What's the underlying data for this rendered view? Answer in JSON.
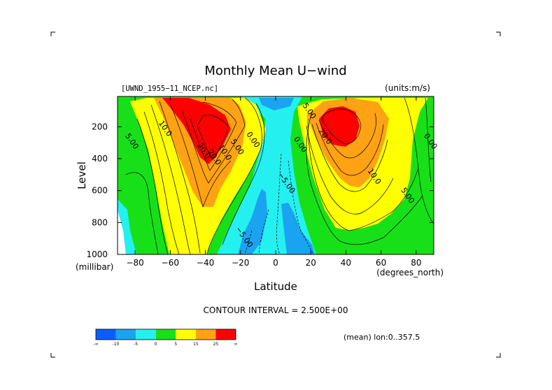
{
  "chart_data": {
    "type": "heatmap",
    "title": "Monthly Mean U−wind",
    "dataset_label": "[UWND_1955−11_NCEP.nc]",
    "units_label": "(units:m/s)",
    "xlabel": "Latitude",
    "ylabel": "Level",
    "x_units_label": "(degrees_north)",
    "y_units_label": "(millibar)",
    "xlim": [
      -90,
      90
    ],
    "ylim": [
      1000,
      10
    ],
    "x_ticks": [
      -80,
      -60,
      -40,
      -20,
      0,
      20,
      40,
      60,
      80
    ],
    "x_tick_labels": [
      "−80",
      "−60",
      "−40",
      "−20",
      "0",
      "20",
      "40",
      "60",
      "80"
    ],
    "y_ticks": [
      200,
      400,
      600,
      800,
      1000
    ],
    "y_tick_labels": [
      "200",
      "400",
      "600",
      "800",
      "1000"
    ],
    "contour_interval_label": "CONTOUR INTERVAL = 2.500E+00",
    "mean_label": "(mean) lon:0..357.5",
    "contour_labels": [
      {
        "text": "5.00",
        "lat": -83,
        "level": 300
      },
      {
        "text": "10.0",
        "lat": -64,
        "level": 220
      },
      {
        "text": "20.0",
        "lat": -42,
        "level": 360
      },
      {
        "text": "20.0",
        "lat": -36,
        "level": 400
      },
      {
        "text": "10.0",
        "lat": -30,
        "level": 370
      },
      {
        "text": "5.00",
        "lat": -23,
        "level": 335
      },
      {
        "text": "0.00",
        "lat": -14,
        "level": 290
      },
      {
        "text": "0.00",
        "lat": 13,
        "level": 320
      },
      {
        "text": "−5.00",
        "lat": 5,
        "level": 560
      },
      {
        "text": "−5.00",
        "lat": -19,
        "level": 900
      },
      {
        "text": "5.00",
        "lat": 18,
        "level": 110
      },
      {
        "text": "20.0",
        "lat": 27,
        "level": 270
      },
      {
        "text": "10.0",
        "lat": 55,
        "level": 520
      },
      {
        "text": "5.00",
        "lat": 74,
        "level": 640
      },
      {
        "text": "0.00",
        "lat": 87,
        "level": 300
      }
    ],
    "colorbar": {
      "colors": [
        "#0a5dff",
        "#1aa3f0",
        "#25f0f0",
        "#18e018",
        "#ffff00",
        "#ffa214",
        "#ff0000"
      ],
      "tick_labels": [
        "-∞",
        "-10",
        "-5",
        "0",
        "5",
        "15",
        "25",
        "∞"
      ]
    },
    "fill_colors": {
      "neg_strong": "#0a5dff",
      "neg": "#1aa3f0",
      "neg_weak": "#25f0f0",
      "pos_weak": "#18e018",
      "pos_mid": "#ffff00",
      "pos_high": "#ffa214",
      "pos_max": "#ff0000"
    },
    "jets": [
      {
        "hemisphere": "south",
        "core_lat": -40,
        "core_level": 220,
        "max_speed": 30
      },
      {
        "hemisphere": "north",
        "core_lat": 32,
        "core_level": 180,
        "max_speed": 30
      }
    ],
    "grid": false
  }
}
